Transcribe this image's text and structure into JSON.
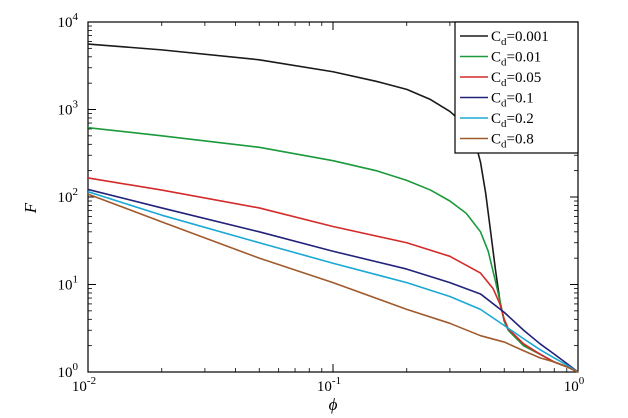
{
  "chart_data": {
    "type": "line",
    "xlabel": "ϕ",
    "ylabel": "F",
    "xscale": "log",
    "yscale": "log",
    "xlim": [
      0.01,
      1
    ],
    "ylim": [
      1,
      10000
    ],
    "x_ticks": [
      {
        "base": "10",
        "exp": "-2",
        "value": 0.01
      },
      {
        "base": "10",
        "exp": "-1",
        "value": 0.1
      },
      {
        "base": "10",
        "exp": "0",
        "value": 1
      }
    ],
    "y_ticks": [
      {
        "base": "10",
        "exp": "0",
        "value": 1
      },
      {
        "base": "10",
        "exp": "1",
        "value": 10
      },
      {
        "base": "10",
        "exp": "2",
        "value": 100
      },
      {
        "base": "10",
        "exp": "3",
        "value": 1000
      },
      {
        "base": "10",
        "exp": "4",
        "value": 10000
      }
    ],
    "legend_position": "top-right",
    "grid": false,
    "series": [
      {
        "name": "Cd=0.001",
        "legend_main": "C",
        "legend_sub": "d",
        "legend_value": "=0.001",
        "color": "#1a1a1a",
        "points": [
          [
            0.01,
            5600
          ],
          [
            0.02,
            4800
          ],
          [
            0.05,
            3700
          ],
          [
            0.1,
            2700
          ],
          [
            0.15,
            2100
          ],
          [
            0.2,
            1700
          ],
          [
            0.25,
            1300
          ],
          [
            0.3,
            950
          ],
          [
            0.35,
            650
          ],
          [
            0.38,
            430
          ],
          [
            0.4,
            250
          ],
          [
            0.42,
            110
          ],
          [
            0.44,
            40
          ],
          [
            0.46,
            15
          ],
          [
            0.48,
            6.5
          ],
          [
            0.5,
            3.8
          ],
          [
            0.52,
            3.0
          ],
          [
            0.6,
            2.0
          ],
          [
            0.7,
            1.6
          ],
          [
            0.8,
            1.3
          ],
          [
            0.9,
            1.15
          ],
          [
            1.0,
            1.0
          ]
        ]
      },
      {
        "name": "Cd=0.01",
        "legend_main": "C",
        "legend_sub": "d",
        "legend_value": "=0.01",
        "color": "#1a9a3a",
        "points": [
          [
            0.01,
            620
          ],
          [
            0.02,
            500
          ],
          [
            0.05,
            370
          ],
          [
            0.1,
            260
          ],
          [
            0.15,
            200
          ],
          [
            0.2,
            155
          ],
          [
            0.25,
            120
          ],
          [
            0.3,
            90
          ],
          [
            0.35,
            65
          ],
          [
            0.4,
            40
          ],
          [
            0.43,
            24
          ],
          [
            0.46,
            11
          ],
          [
            0.48,
            6.5
          ],
          [
            0.5,
            3.8
          ],
          [
            0.52,
            3.0
          ],
          [
            0.6,
            2.0
          ],
          [
            0.7,
            1.6
          ],
          [
            0.8,
            1.3
          ],
          [
            0.9,
            1.15
          ],
          [
            1.0,
            1.0
          ]
        ]
      },
      {
        "name": "Cd=0.05",
        "legend_main": "C",
        "legend_sub": "d",
        "legend_value": "=0.05",
        "color": "#d42a2a",
        "points": [
          [
            0.01,
            165
          ],
          [
            0.02,
            120
          ],
          [
            0.05,
            75
          ],
          [
            0.1,
            46
          ],
          [
            0.2,
            30
          ],
          [
            0.3,
            21
          ],
          [
            0.4,
            13.5
          ],
          [
            0.45,
            9.0
          ],
          [
            0.48,
            6.0
          ],
          [
            0.5,
            4.0
          ],
          [
            0.52,
            3.1
          ],
          [
            0.6,
            2.1
          ],
          [
            0.7,
            1.6
          ],
          [
            0.8,
            1.3
          ],
          [
            0.9,
            1.15
          ],
          [
            1.0,
            1.0
          ]
        ]
      },
      {
        "name": "Cd=0.1",
        "legend_main": "C",
        "legend_sub": "d",
        "legend_value": "=0.1",
        "color": "#22227a",
        "points": [
          [
            0.01,
            122
          ],
          [
            0.02,
            75
          ],
          [
            0.05,
            40
          ],
          [
            0.1,
            24
          ],
          [
            0.2,
            15
          ],
          [
            0.3,
            10.5
          ],
          [
            0.4,
            7.8
          ],
          [
            0.5,
            4.8
          ],
          [
            0.6,
            3.0
          ],
          [
            0.7,
            2.1
          ],
          [
            0.8,
            1.6
          ],
          [
            0.9,
            1.25
          ],
          [
            1.0,
            1.0
          ]
        ]
      },
      {
        "name": "Cd=0.2",
        "legend_main": "C",
        "legend_sub": "d",
        "legend_value": "=0.2",
        "color": "#1aa8d4",
        "points": [
          [
            0.01,
            115
          ],
          [
            0.02,
            62
          ],
          [
            0.05,
            30
          ],
          [
            0.1,
            17.5
          ],
          [
            0.2,
            10.5
          ],
          [
            0.3,
            7.3
          ],
          [
            0.4,
            5.2
          ],
          [
            0.5,
            3.4
          ],
          [
            0.6,
            2.4
          ],
          [
            0.7,
            1.8
          ],
          [
            0.8,
            1.45
          ],
          [
            0.9,
            1.2
          ],
          [
            1.0,
            1.0
          ]
        ]
      },
      {
        "name": "Cd=0.8",
        "legend_main": "C",
        "legend_sub": "d",
        "legend_value": "=0.8",
        "color": "#a05a2c",
        "points": [
          [
            0.01,
            108
          ],
          [
            0.02,
            52
          ],
          [
            0.05,
            20
          ],
          [
            0.1,
            10.5
          ],
          [
            0.2,
            5.2
          ],
          [
            0.3,
            3.6
          ],
          [
            0.4,
            2.6
          ],
          [
            0.5,
            2.2
          ],
          [
            0.6,
            1.75
          ],
          [
            0.7,
            1.45
          ],
          [
            0.8,
            1.3
          ],
          [
            0.9,
            1.15
          ],
          [
            1.0,
            1.0
          ]
        ]
      }
    ]
  }
}
